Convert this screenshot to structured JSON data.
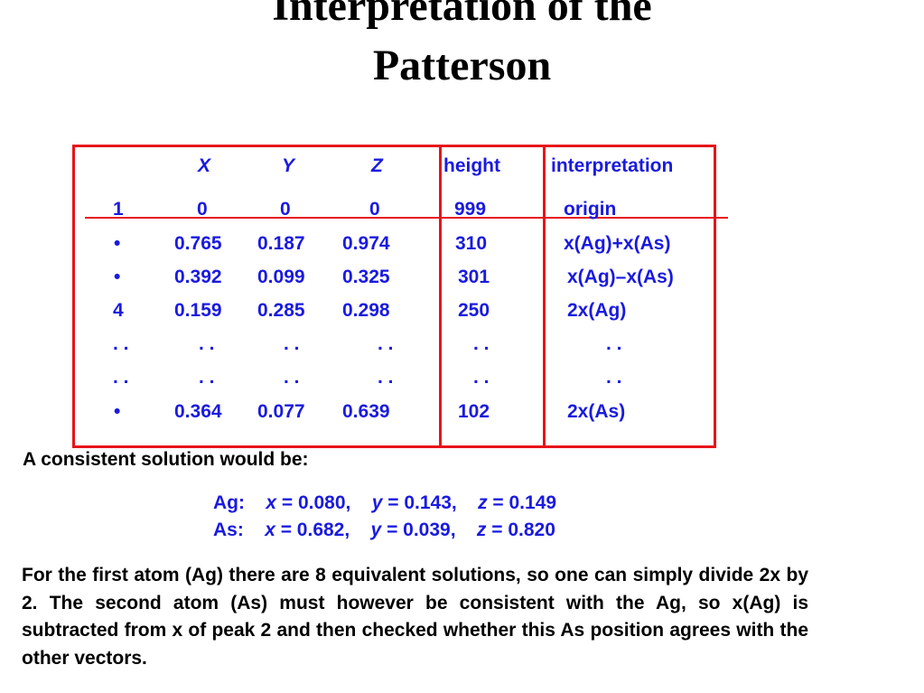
{
  "title": {
    "line1": "Interpretation of the",
    "line2": "Patterson"
  },
  "table": {
    "headers": {
      "x": "X",
      "y": "Y",
      "z": "Z",
      "height": "height",
      "interpretation": "interpretation"
    },
    "rows": [
      {
        "id": "1",
        "x": "0",
        "y": "0",
        "z": "0",
        "height": "999",
        "interp": "origin"
      },
      {
        "id": "•",
        "x": "0.765",
        "y": "0.187",
        "z": "0.974",
        "height": "310",
        "interp": "x(Ag)+x(As)"
      },
      {
        "id": "•",
        "x": "0.392",
        "y": "0.099",
        "z": "0.325",
        "height": "301",
        "interp": "x(Ag)–x(As)"
      },
      {
        "id": "4",
        "x": "0.159",
        "y": "0.285",
        "z": "0.298",
        "height": "250",
        "interp": "2x(Ag)"
      },
      {
        "id": ". .",
        "x": ". .",
        "y": ". .",
        "z": ". .",
        "height": ". .",
        "interp": ". ."
      },
      {
        "id": ". .",
        "x": ". .",
        "y": ". .",
        "z": ". .",
        "height": ". .",
        "interp": ". ."
      },
      {
        "id": "•",
        "x": "0.364",
        "y": "0.077",
        "z": "0.639",
        "height": "102",
        "interp": "2x(As)"
      }
    ]
  },
  "consistent_label": "A consistent solution would be:",
  "solutions": [
    {
      "atom": "Ag:",
      "x_label": "x",
      "x_val": " = 0.080,",
      "y_label": "y",
      "y_val": " = 0.143,",
      "z_label": "z",
      "z_val": " = 0.149"
    },
    {
      "atom": "As:",
      "x_label": "x",
      "x_val": " = 0.682,",
      "y_label": "y",
      "y_val": " = 0.039,",
      "z_label": "z",
      "z_val": " = 0.820"
    }
  ],
  "paragraph": "For the first atom (Ag) there are 8 equivalent solutions, so one can simply divide 2x by 2. The second atom (As) must however be consistent with the Ag, so x(Ag) is subtracted from x of peak 2 and then checked whether this As position agrees with the other vectors."
}
